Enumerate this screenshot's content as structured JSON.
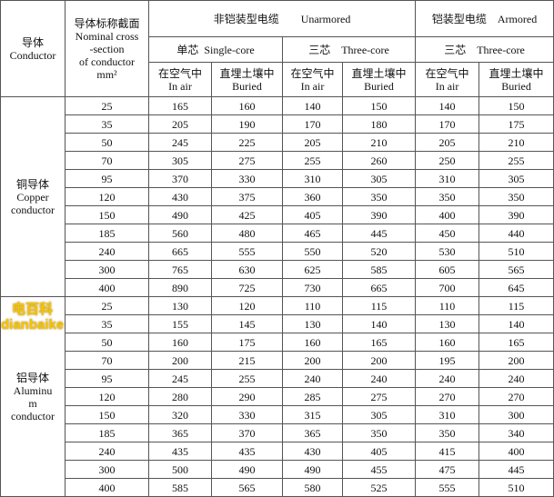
{
  "header": {
    "conductor": [
      "导体",
      "Conductor"
    ],
    "cross_section": [
      "导体标称截面",
      "Nominal cross",
      "-section",
      "of conductor",
      "mm²"
    ],
    "unarmored": "非铠装型电缆        Unarmored",
    "armored": "铠装型电缆    Armored",
    "single_core": "单芯  Single-core",
    "three_core_unarmored": "三芯    Three-core",
    "three_core_armored": "三芯    Three-core",
    "in_air": [
      "在空气中",
      "In air"
    ],
    "buried": [
      "直埋土壤中",
      "Buried"
    ]
  },
  "groups": [
    {
      "label": [
        "铜导体",
        "Copper",
        "conductor"
      ],
      "rows": [
        [
          "25",
          "165",
          "160",
          "140",
          "150",
          "140",
          "150"
        ],
        [
          "35",
          "205",
          "190",
          "170",
          "180",
          "170",
          "175"
        ],
        [
          "50",
          "245",
          "225",
          "205",
          "210",
          "205",
          "210"
        ],
        [
          "70",
          "305",
          "275",
          "255",
          "260",
          "250",
          "255"
        ],
        [
          "95",
          "370",
          "330",
          "310",
          "305",
          "310",
          "305"
        ],
        [
          "120",
          "430",
          "375",
          "360",
          "350",
          "350",
          "350"
        ],
        [
          "150",
          "490",
          "425",
          "405",
          "390",
          "400",
          "390"
        ],
        [
          "185",
          "560",
          "480",
          "465",
          "445",
          "450",
          "440"
        ],
        [
          "240",
          "665",
          "555",
          "550",
          "520",
          "530",
          "510"
        ],
        [
          "300",
          "765",
          "630",
          "625",
          "585",
          "605",
          "565"
        ],
        [
          "400",
          "890",
          "725",
          "730",
          "665",
          "700",
          "645"
        ]
      ]
    },
    {
      "label": [
        "铝导体",
        "Aluminu",
        "m",
        "conductor"
      ],
      "rows": [
        [
          "25",
          "130",
          "120",
          "110",
          "115",
          "110",
          "115"
        ],
        [
          "35",
          "155",
          "145",
          "130",
          "140",
          "130",
          "140"
        ],
        [
          "50",
          "160",
          "175",
          "160",
          "165",
          "160",
          "165"
        ],
        [
          "70",
          "200",
          "215",
          "200",
          "200",
          "195",
          "200"
        ],
        [
          "95",
          "245",
          "255",
          "240",
          "240",
          "240",
          "240"
        ],
        [
          "120",
          "280",
          "290",
          "285",
          "275",
          "270",
          "270"
        ],
        [
          "150",
          "320",
          "330",
          "315",
          "305",
          "310",
          "300"
        ],
        [
          "185",
          "365",
          "370",
          "365",
          "350",
          "350",
          "340"
        ],
        [
          "240",
          "435",
          "435",
          "430",
          "405",
          "415",
          "400"
        ],
        [
          "300",
          "500",
          "490",
          "490",
          "455",
          "475",
          "445"
        ],
        [
          "400",
          "585",
          "565",
          "580",
          "525",
          "555",
          "510"
        ]
      ]
    }
  ],
  "watermark": "电百科 dianbaike"
}
